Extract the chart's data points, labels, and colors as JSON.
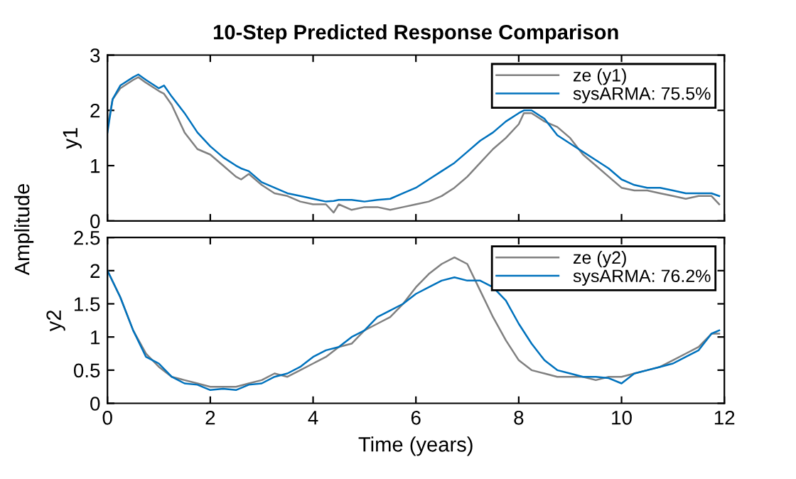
{
  "chart_data": [
    {
      "type": "line",
      "title": "10-Step Predicted Response Comparison",
      "ylabel": "y1",
      "annotations": [
        "Amplitude"
      ],
      "xlim": [
        0,
        12
      ],
      "xticks": [
        0,
        2,
        4,
        6,
        8,
        10,
        12
      ],
      "ylim": [
        0,
        3
      ],
      "yticks": [
        0,
        1,
        2,
        3
      ],
      "tick_labels": "y",
      "legend": "top right",
      "grid": false,
      "x": [
        0,
        0.1,
        0.25,
        0.5,
        0.6,
        0.75,
        1.0,
        1.1,
        1.25,
        1.5,
        1.75,
        2.0,
        2.25,
        2.5,
        2.6,
        2.75,
        3.0,
        3.25,
        3.5,
        3.75,
        4.0,
        4.25,
        4.4,
        4.5,
        4.75,
        5.0,
        5.25,
        5.5,
        5.75,
        6.0,
        6.25,
        6.5,
        6.75,
        7.0,
        7.25,
        7.5,
        7.75,
        8.0,
        8.1,
        8.25,
        8.5,
        8.75,
        9.0,
        9.25,
        9.5,
        9.75,
        10.0,
        10.25,
        10.5,
        10.75,
        11.0,
        11.25,
        11.5,
        11.75,
        11.9
      ],
      "series": [
        {
          "name": "ze (y1)",
          "color": "#808080",
          "values": [
            1.7,
            2.2,
            2.4,
            2.55,
            2.6,
            2.5,
            2.35,
            2.3,
            2.1,
            1.6,
            1.3,
            1.2,
            1.0,
            0.8,
            0.75,
            0.85,
            0.65,
            0.5,
            0.45,
            0.35,
            0.3,
            0.3,
            0.15,
            0.3,
            0.2,
            0.25,
            0.25,
            0.2,
            0.25,
            0.3,
            0.35,
            0.45,
            0.6,
            0.8,
            1.05,
            1.3,
            1.5,
            1.75,
            1.95,
            1.95,
            1.8,
            1.7,
            1.5,
            1.2,
            1.0,
            0.8,
            0.6,
            0.55,
            0.55,
            0.5,
            0.45,
            0.4,
            0.45,
            0.45,
            0.3
          ]
        },
        {
          "name": "sysARMA: 75.5%",
          "color": "#0072bd",
          "values": [
            1.6,
            2.2,
            2.45,
            2.6,
            2.65,
            2.55,
            2.4,
            2.45,
            2.25,
            1.95,
            1.6,
            1.35,
            1.15,
            1.0,
            0.95,
            0.9,
            0.7,
            0.6,
            0.5,
            0.45,
            0.4,
            0.35,
            0.36,
            0.38,
            0.38,
            0.35,
            0.38,
            0.4,
            0.5,
            0.6,
            0.75,
            0.9,
            1.05,
            1.25,
            1.45,
            1.6,
            1.8,
            1.95,
            2.0,
            2.0,
            1.85,
            1.55,
            1.4,
            1.25,
            1.1,
            0.95,
            0.75,
            0.65,
            0.6,
            0.6,
            0.55,
            0.5,
            0.5,
            0.5,
            0.45
          ]
        }
      ]
    },
    {
      "type": "line",
      "ylabel": "y2",
      "xlabel": "Time (years)",
      "xlim": [
        0,
        12
      ],
      "xticks": [
        0,
        2,
        4,
        6,
        8,
        10,
        12
      ],
      "ylim": [
        0,
        2.5
      ],
      "yticks": [
        0,
        0.5,
        1,
        1.5,
        2,
        2.5
      ],
      "legend": "top right",
      "grid": false,
      "x": [
        0,
        0.25,
        0.5,
        0.75,
        1.0,
        1.25,
        1.5,
        1.75,
        2.0,
        2.25,
        2.5,
        2.75,
        3.0,
        3.25,
        3.5,
        3.75,
        4.0,
        4.25,
        4.5,
        4.75,
        5.0,
        5.25,
        5.5,
        5.75,
        6.0,
        6.25,
        6.5,
        6.75,
        7.0,
        7.25,
        7.5,
        7.75,
        8.0,
        8.25,
        8.5,
        8.75,
        9.0,
        9.25,
        9.5,
        9.75,
        10.0,
        10.25,
        10.5,
        10.75,
        11.0,
        11.25,
        11.5,
        11.75,
        11.9
      ],
      "series": [
        {
          "name": "ze (y2)",
          "color": "#808080",
          "values": [
            2.0,
            1.6,
            1.1,
            0.75,
            0.55,
            0.4,
            0.35,
            0.3,
            0.25,
            0.25,
            0.25,
            0.3,
            0.35,
            0.45,
            0.4,
            0.5,
            0.6,
            0.7,
            0.85,
            0.9,
            1.1,
            1.2,
            1.3,
            1.5,
            1.75,
            1.95,
            2.1,
            2.2,
            2.1,
            1.7,
            1.3,
            0.95,
            0.65,
            0.5,
            0.45,
            0.4,
            0.4,
            0.4,
            0.35,
            0.4,
            0.4,
            0.45,
            0.5,
            0.55,
            0.65,
            0.75,
            0.85,
            1.05,
            1.05
          ]
        },
        {
          "name": "sysARMA: 76.2%",
          "color": "#0072bd",
          "values": [
            2.0,
            1.6,
            1.1,
            0.7,
            0.6,
            0.4,
            0.3,
            0.28,
            0.2,
            0.22,
            0.2,
            0.28,
            0.3,
            0.4,
            0.45,
            0.55,
            0.7,
            0.8,
            0.85,
            1.0,
            1.1,
            1.3,
            1.4,
            1.5,
            1.65,
            1.75,
            1.85,
            1.9,
            1.85,
            1.85,
            1.75,
            1.55,
            1.2,
            0.9,
            0.65,
            0.5,
            0.45,
            0.4,
            0.4,
            0.38,
            0.3,
            0.45,
            0.5,
            0.55,
            0.6,
            0.7,
            0.8,
            1.05,
            1.1
          ]
        }
      ]
    }
  ]
}
